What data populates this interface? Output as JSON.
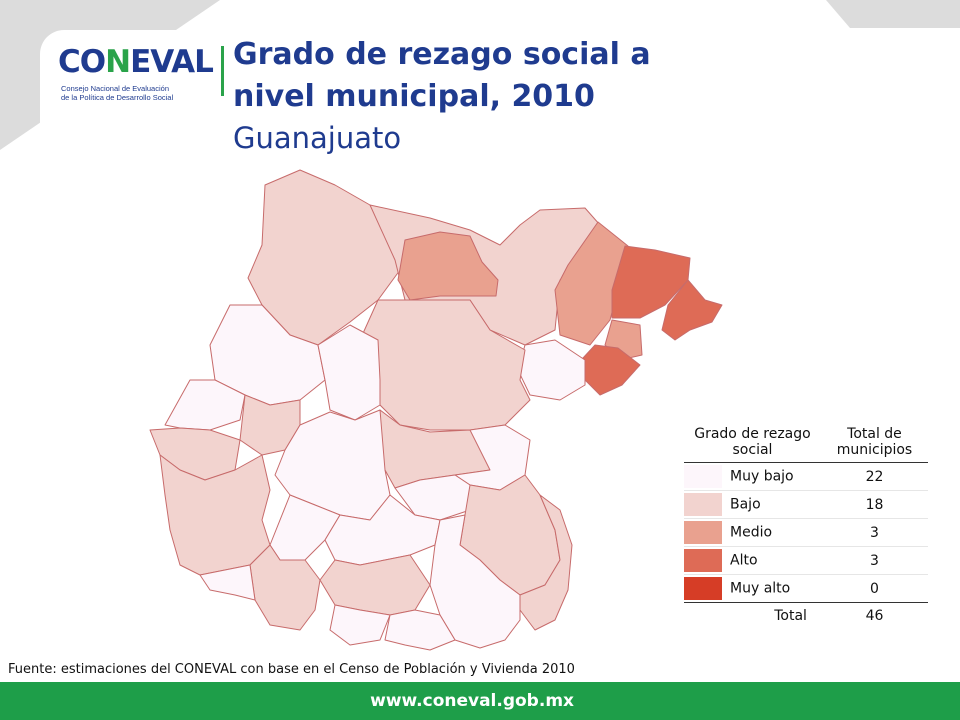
{
  "header": {
    "logo_word_a": "CO",
    "logo_word_b": "N",
    "logo_word_c": "EVAL",
    "logo_subtitle_1": "Consejo Nacional de Evaluación",
    "logo_subtitle_2": "de la Política de Desarrollo Social",
    "title_line1": "Grado de rezago social a",
    "title_line2": "nivel municipal, 2010",
    "subtitle": "Guanajuato"
  },
  "colors": {
    "muy_bajo": "#fdf6fb",
    "bajo": "#f2d3cf",
    "medio": "#e9a18f",
    "alto": "#de6b56",
    "muy_alto": "#d63d26",
    "border": "#c76b6b",
    "title": "#1f3b8f",
    "footer": "#1e9e49"
  },
  "legend": {
    "header_category": "Grado de rezago social",
    "header_total": "Total de municipios",
    "rows": [
      {
        "label": "Muy bajo",
        "count": "22",
        "color_key": "muy_bajo"
      },
      {
        "label": "Bajo",
        "count": "18",
        "color_key": "bajo"
      },
      {
        "label": "Medio",
        "count": "3",
        "color_key": "medio"
      },
      {
        "label": "Alto",
        "count": "3",
        "color_key": "alto"
      },
      {
        "label": "Muy alto",
        "count": "0",
        "color_key": "muy_alto"
      }
    ],
    "total_label": "Total",
    "total_value": "46"
  },
  "source": "Fuente: estimaciones del CONEVAL con base en el Censo de Población y Vivienda 2010",
  "footer": {
    "url": "www.coneval.gob.mx"
  }
}
